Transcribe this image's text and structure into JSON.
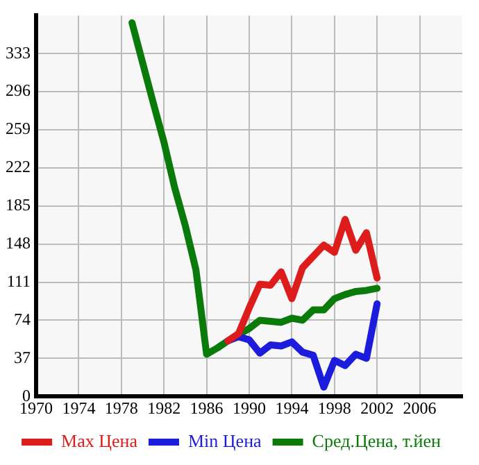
{
  "chart_data": {
    "type": "line",
    "x": [
      1979,
      1980,
      1981,
      1982,
      1983,
      1984,
      1985,
      1986,
      1987,
      1988,
      1989,
      1990,
      1991,
      1992,
      1993,
      1994,
      1995,
      1996,
      1997,
      1998,
      1999,
      2000,
      2001,
      2002
    ],
    "series": [
      {
        "name": "Max Цена",
        "color": "#dd1c1c",
        "values": [
          null,
          null,
          null,
          null,
          null,
          null,
          null,
          null,
          null,
          54,
          61,
          86,
          109,
          108,
          121,
          95,
          125,
          136,
          147,
          140,
          172,
          142,
          159,
          115
        ]
      },
      {
        "name": "Min Цена",
        "color": "#1c1cdd",
        "values": [
          null,
          null,
          null,
          null,
          null,
          null,
          null,
          null,
          null,
          54,
          58,
          55,
          42,
          50,
          49,
          53,
          43,
          40,
          9,
          35,
          30,
          41,
          37,
          90
        ]
      },
      {
        "name": "Сред.Цена, т.йен",
        "color": "#0a7a0a",
        "values": [
          363,
          324,
          285,
          247,
          203,
          166,
          123,
          41,
          47,
          54,
          60,
          66,
          74,
          73,
          72,
          76,
          74,
          84,
          84,
          95,
          99,
          102,
          103,
          105
        ]
      }
    ],
    "xlim": [
      1970,
      2010
    ],
    "xticks": [
      1970,
      1974,
      1978,
      1982,
      1986,
      1990,
      1994,
      1998,
      2002,
      2006
    ],
    "ylim": [
      0,
      370
    ],
    "yticks": [
      0,
      37,
      74,
      111,
      148,
      185,
      222,
      259,
      296,
      333
    ],
    "grid": true,
    "legend": "bottom",
    "marker": "none",
    "line_style": "solid"
  }
}
